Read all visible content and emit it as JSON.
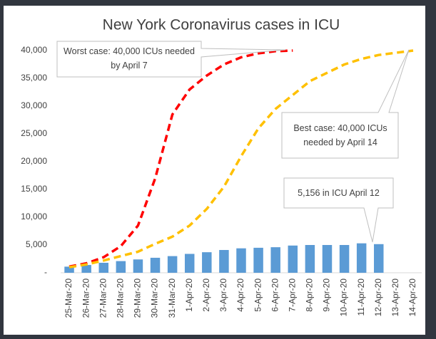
{
  "chart_data": {
    "type": "bar",
    "title": "New York Coronavirus cases in ICU",
    "categories": [
      "25-Mar-20",
      "26-Mar-20",
      "27-Mar-20",
      "28-Mar-20",
      "29-Mar-20",
      "30-Mar-20",
      "31-Mar-20",
      "1-Apr-20",
      "2-Apr-20",
      "3-Apr-20",
      "4-Apr-20",
      "5-Apr-20",
      "6-Apr-20",
      "7-Apr-20",
      "8-Apr-20",
      "9-Apr-20",
      "10-Apr-20",
      "11-Apr-20",
      "12-Apr-20",
      "13-Apr-20",
      "14-Apr-20"
    ],
    "series": [
      {
        "name": "ICU",
        "type": "bar",
        "color": "#5b9bd5",
        "values": [
          1100,
          1400,
          1800,
          2100,
          2400,
          2700,
          3000,
          3400,
          3700,
          4100,
          4400,
          4500,
          4600,
          4900,
          5000,
          5000,
          5000,
          5300,
          5156,
          null,
          null
        ]
      },
      {
        "name": "Worst case",
        "type": "line",
        "color": "#ff0000",
        "values": [
          1100,
          1700,
          2800,
          4800,
          8500,
          17000,
          28500,
          33000,
          35500,
          37500,
          38800,
          39500,
          39900,
          40000,
          null,
          null,
          null,
          null,
          null,
          null,
          null
        ]
      },
      {
        "name": "Best case",
        "type": "line",
        "color": "#ffc000",
        "values": [
          1000,
          1500,
          2200,
          3000,
          3800,
          5200,
          6500,
          8500,
          11500,
          15500,
          21000,
          26000,
          29500,
          32000,
          34500,
          36000,
          37500,
          38500,
          39200,
          39600,
          40000
        ]
      }
    ],
    "ylim": [
      0,
      40000
    ],
    "yticks": [
      {
        "value": 0,
        "label": "-"
      },
      {
        "value": 5000,
        "label": "5,000"
      },
      {
        "value": 10000,
        "label": "10,000"
      },
      {
        "value": 15000,
        "label": "15,000"
      },
      {
        "value": 20000,
        "label": "20,000"
      },
      {
        "value": 25000,
        "label": "25,000"
      },
      {
        "value": 30000,
        "label": "30,000"
      },
      {
        "value": 35000,
        "label": "35,000"
      },
      {
        "value": 40000,
        "label": "40,000"
      }
    ],
    "annotations": [
      "Worst case: 40,000 ICUs needed by April 7",
      "Best case: 40,000 ICUs needed by April 14",
      "5,156 in ICU April 12"
    ]
  }
}
